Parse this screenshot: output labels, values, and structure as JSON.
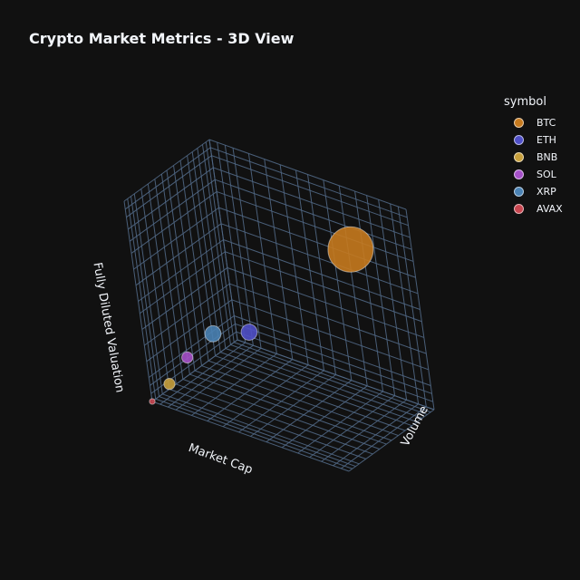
{
  "chart_data": {
    "type": "scatter",
    "title": "Crypto Market Metrics - 3D View",
    "axes": {
      "x": "Market Cap",
      "y": "Volume",
      "z": "Fully Diluted Valuation"
    },
    "legend": {
      "title": "symbol",
      "placement": "top-right"
    },
    "grid": true,
    "series": [
      {
        "name": "BTC",
        "color": "#c77a1e",
        "x": 1.0,
        "y": 0.35,
        "z": 1.0,
        "size": 1.0
      },
      {
        "name": "ETH",
        "color": "#5050c8",
        "x": 0.42,
        "y": 0.3,
        "z": 0.4,
        "size": 0.3
      },
      {
        "name": "BNB",
        "color": "#c8a03c",
        "x": 0.08,
        "y": 0.05,
        "z": 0.1,
        "size": 0.18
      },
      {
        "name": "SOL",
        "color": "#a550c8",
        "x": 0.12,
        "y": 0.2,
        "z": 0.2,
        "size": 0.18
      },
      {
        "name": "XRP",
        "color": "#4a82b4",
        "x": 0.2,
        "y": 0.35,
        "z": 0.3,
        "size": 0.3
      },
      {
        "name": "AVAX",
        "color": "#c84650",
        "x": 0.0,
        "y": 0.0,
        "z": 0.0,
        "size": 0.05
      }
    ]
  }
}
